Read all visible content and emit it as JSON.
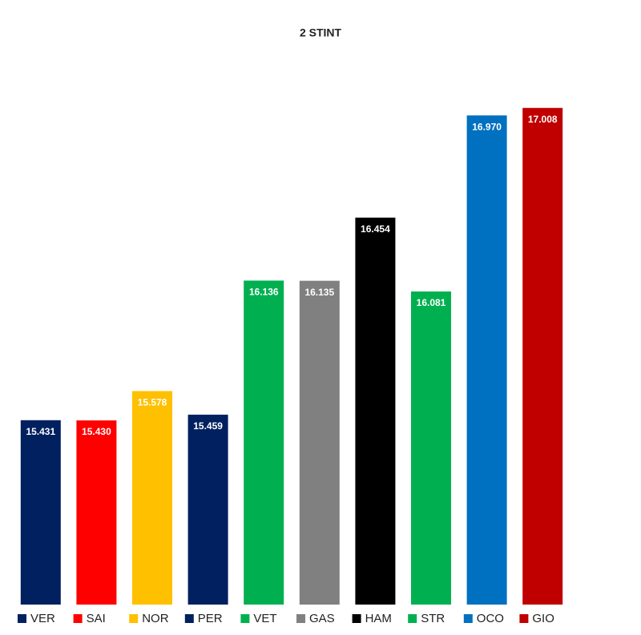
{
  "chart_data": {
    "type": "bar",
    "title": "2 STINT",
    "categories": [
      "VER",
      "SAI",
      "NOR",
      "PER",
      "VET",
      "GAS",
      "HAM",
      "STR",
      "OCO",
      "GIO"
    ],
    "values": [
      15.431,
      15.43,
      15.578,
      15.459,
      16.136,
      16.135,
      16.454,
      16.081,
      16.97,
      17.008
    ],
    "value_labels": [
      "15.431",
      "15.430",
      "15.578",
      "15.459",
      "16.136",
      "16.135",
      "16.454",
      "16.081",
      "16.970",
      "17.008"
    ],
    "colors": [
      "#002060",
      "#ff0000",
      "#ffc000",
      "#002060",
      "#00b050",
      "#808080",
      "#000000",
      "#00b050",
      "#0070c0",
      "#c00000"
    ],
    "ylim": [
      14.5,
      17.1
    ]
  }
}
